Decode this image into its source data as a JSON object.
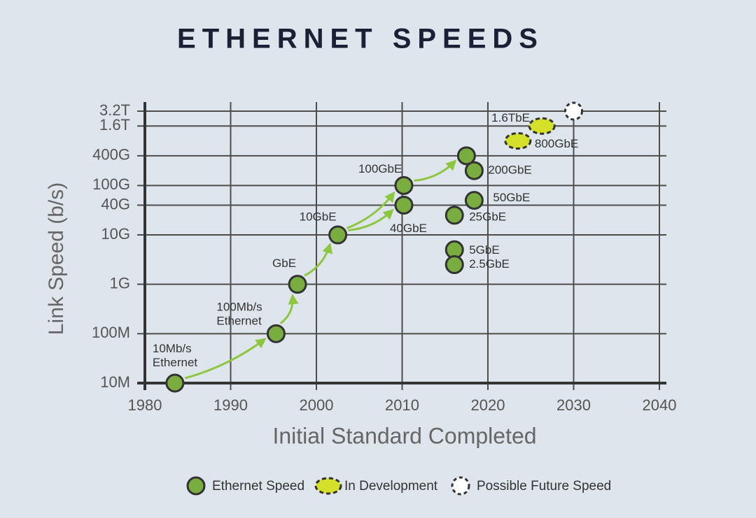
{
  "chart_data": {
    "type": "scatter",
    "title": "ETHERNET SPEEDS",
    "x_label": "Initial Standard Completed",
    "y_label": "Link Speed (b/s)",
    "xlim": [
      1980,
      2040
    ],
    "xticks": [
      1980,
      1990,
      2000,
      2010,
      2020,
      2030,
      2040
    ],
    "ylim": [
      10000000,
      3200000000000
    ],
    "y_scale": "log",
    "yticks": [
      {
        "value": 10000000,
        "label": "10M"
      },
      {
        "value": 100000000,
        "label": "100M"
      },
      {
        "value": 1000000000,
        "label": "1G"
      },
      {
        "value": 10000000000,
        "label": "10G"
      },
      {
        "value": 40000000000,
        "label": "40G"
      },
      {
        "value": 100000000000,
        "label": "100G"
      },
      {
        "value": 400000000000,
        "label": "400G"
      },
      {
        "value": 1600000000000,
        "label": "1.6T"
      },
      {
        "value": 3200000000000,
        "label": "3.2T"
      }
    ],
    "grid": true,
    "series": [
      {
        "name": "Ethernet Speed",
        "color": "#7aad3f",
        "x": [
          1983.5,
          1995.3,
          1997.8,
          2002.5,
          2010.2,
          2010.2,
          2017.5,
          2018.4,
          2018.4,
          2016.1,
          2016.1,
          2016.1
        ],
        "values": [
          10000000,
          100000000,
          1000000000,
          10000000000,
          40000000000,
          100000000000,
          400000000000,
          200000000000,
          50000000000,
          25000000000,
          5000000000,
          2500000000
        ],
        "labels": [
          "10Mb/s\nEthernet",
          "100Mb/s\nEthernet",
          "GbE",
          "10GbE",
          "40GbE",
          "100GbE",
          null,
          "200GbE",
          "50GbE",
          "25GbE",
          "5GbE",
          "2.5GbE"
        ]
      },
      {
        "name": "In Development",
        "color": "#d4e02a",
        "x": [
          2023.5,
          2026.3
        ],
        "values": [
          800000000000,
          1600000000000
        ],
        "labels": [
          "800GbE",
          "1.6TbE"
        ]
      },
      {
        "name": "Possible Future Speed",
        "color": "#ffffff",
        "x": [
          2030
        ],
        "values": [
          3200000000000
        ],
        "labels": [
          null
        ]
      }
    ]
  }
}
